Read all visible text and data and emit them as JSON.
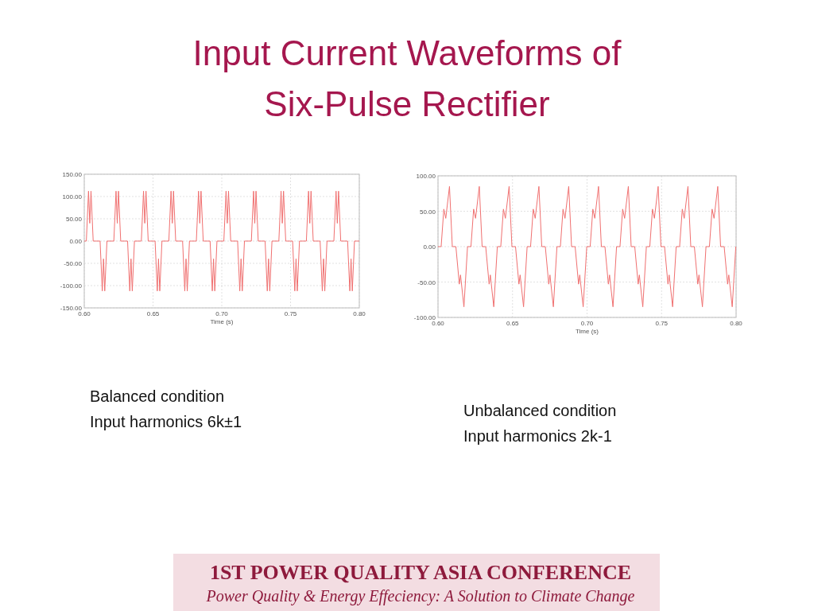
{
  "chart_data": [
    {
      "type": "line",
      "title": "Input Current Waveforms of Six-Pulse Rectifier",
      "xlabel": "Time (s)",
      "annotations": [
        "Balanced condition",
        "Input harmonics 6k±1"
      ],
      "xlim": [
        0.6,
        0.8
      ],
      "ylim": [
        -150,
        150
      ],
      "xticks": [
        {
          "value": 0.6,
          "label": "0.60"
        },
        {
          "value": 0.65,
          "label": "0.65"
        },
        {
          "value": 0.7,
          "label": "0.70"
        },
        {
          "value": 0.75,
          "label": "0.75"
        },
        {
          "value": 0.8,
          "label": "0.80"
        }
      ],
      "yticks": [
        {
          "value": -150,
          "label": "-150.00"
        },
        {
          "value": -100,
          "label": "-100.00"
        },
        {
          "value": -50,
          "label": "-50.00"
        },
        {
          "value": 0,
          "label": "0.00"
        },
        {
          "value": 50,
          "label": "50.00"
        },
        {
          "value": 100,
          "label": "100.00"
        },
        {
          "value": 150,
          "label": "150.00"
        }
      ],
      "grid": true,
      "line_style": "solid",
      "series": [
        {
          "color": "#f07070",
          "x": [
            0.6,
            0.6015,
            0.6031,
            0.604,
            0.6049,
            0.6065,
            0.6115,
            0.6131,
            0.614,
            0.6149,
            0.6165,
            0.6215,
            0.6231,
            0.624,
            0.6249,
            0.6265,
            0.6315,
            0.6331,
            0.634,
            0.6349,
            0.6365,
            0.6415,
            0.6431,
            0.644,
            0.6449,
            0.6465,
            0.6515,
            0.6531,
            0.654,
            0.6549,
            0.6565,
            0.6615,
            0.6631,
            0.664,
            0.6649,
            0.6665,
            0.6715,
            0.6731,
            0.674,
            0.6749,
            0.6765,
            0.6815,
            0.6831,
            0.684,
            0.6849,
            0.6865,
            0.6915,
            0.6931,
            0.694,
            0.6949,
            0.6965,
            0.7015,
            0.7031,
            0.704,
            0.7049,
            0.7065,
            0.7115,
            0.7131,
            0.714,
            0.7149,
            0.7165,
            0.7215,
            0.7231,
            0.724,
            0.7249,
            0.7265,
            0.7315,
            0.7331,
            0.734,
            0.7349,
            0.7365,
            0.7415,
            0.7431,
            0.744,
            0.7449,
            0.7465,
            0.7515,
            0.7531,
            0.754,
            0.7549,
            0.7565,
            0.7615,
            0.7631,
            0.764,
            0.7649,
            0.7665,
            0.7715,
            0.7731,
            0.774,
            0.7749,
            0.7765,
            0.7815,
            0.7831,
            0.784,
            0.7849,
            0.7865,
            0.7915,
            0.7931,
            0.794,
            0.7949,
            0.7965,
            0.8
          ],
          "values": [
            0,
            0,
            112,
            40,
            112,
            0,
            0,
            -112,
            -40,
            -112,
            0,
            0,
            112,
            40,
            112,
            0,
            0,
            -112,
            -40,
            -112,
            0,
            0,
            112,
            40,
            112,
            0,
            0,
            -112,
            -40,
            -112,
            0,
            0,
            112,
            40,
            112,
            0,
            0,
            -112,
            -40,
            -112,
            0,
            0,
            112,
            40,
            112,
            0,
            0,
            -112,
            -40,
            -112,
            0,
            0,
            112,
            40,
            112,
            0,
            0,
            -112,
            -40,
            -112,
            0,
            0,
            112,
            40,
            112,
            0,
            0,
            -112,
            -40,
            -112,
            0,
            0,
            112,
            40,
            112,
            0,
            0,
            -112,
            -40,
            -112,
            0,
            0,
            112,
            40,
            112,
            0,
            0,
            -112,
            -40,
            -112,
            0,
            0,
            112,
            40,
            112,
            0,
            0,
            -112,
            -40,
            -112,
            0,
            0
          ]
        }
      ]
    },
    {
      "type": "line",
      "xlabel": "Time (s)",
      "annotations": [
        "Unbalanced condition",
        "Input harmonics 2k-1",
        "1ST POWER QUALITY ASIA CONFERENCE",
        "Power Quality & Energy Effeciency: A Solution to Climate Change"
      ],
      "xlim": [
        0.6,
        0.8
      ],
      "ylim": [
        -100,
        100
      ],
      "xticks": [
        {
          "value": 0.6,
          "label": "0.60"
        },
        {
          "value": 0.65,
          "label": "0.65"
        },
        {
          "value": 0.7,
          "label": "0.70"
        },
        {
          "value": 0.75,
          "label": "0.75"
        },
        {
          "value": 0.8,
          "label": "0.80"
        }
      ],
      "yticks": [
        {
          "value": -100,
          "label": "-100.00"
        },
        {
          "value": -50,
          "label": "-50.00"
        },
        {
          "value": 0,
          "label": "0.00"
        },
        {
          "value": 50,
          "label": "50.00"
        },
        {
          "value": 100,
          "label": "100.00"
        }
      ],
      "grid": true,
      "line_style": "solid",
      "series": [
        {
          "color": "#f07070",
          "x": [
            0.6,
            0.6021,
            0.6039,
            0.6052,
            0.6077,
            0.6096,
            0.612,
            0.6143,
            0.6151,
            0.6174,
            0.6198,
            0.6221,
            0.6239,
            0.6252,
            0.6277,
            0.6296,
            0.632,
            0.6343,
            0.6351,
            0.6374,
            0.6398,
            0.6421,
            0.6439,
            0.6452,
            0.6477,
            0.6496,
            0.652,
            0.6543,
            0.6551,
            0.6574,
            0.6598,
            0.6621,
            0.6639,
            0.6652,
            0.6677,
            0.6696,
            0.672,
            0.6743,
            0.6751,
            0.6774,
            0.6798,
            0.6821,
            0.6839,
            0.6852,
            0.6877,
            0.6896,
            0.692,
            0.6943,
            0.6951,
            0.6974,
            0.6998,
            0.7021,
            0.7039,
            0.7052,
            0.7077,
            0.7096,
            0.712,
            0.7143,
            0.7151,
            0.7174,
            0.7198,
            0.7221,
            0.7239,
            0.7252,
            0.7277,
            0.7296,
            0.732,
            0.7343,
            0.7351,
            0.7374,
            0.7398,
            0.7421,
            0.7439,
            0.7452,
            0.7477,
            0.7496,
            0.752,
            0.7543,
            0.7551,
            0.7574,
            0.7598,
            0.7621,
            0.7639,
            0.7652,
            0.7677,
            0.7696,
            0.772,
            0.7743,
            0.7751,
            0.7774,
            0.7798,
            0.7821,
            0.7839,
            0.7852,
            0.7877,
            0.7896,
            0.792,
            0.7943,
            0.7951,
            0.7974,
            0.7998
          ],
          "values": [
            0,
            0,
            53,
            40,
            85,
            0,
            0,
            -53,
            -40,
            -85,
            0,
            0,
            53,
            40,
            85,
            0,
            0,
            -53,
            -40,
            -85,
            0,
            0,
            53,
            40,
            85,
            0,
            0,
            -53,
            -40,
            -85,
            0,
            0,
            53,
            40,
            85,
            0,
            0,
            -53,
            -40,
            -85,
            0,
            0,
            53,
            40,
            85,
            0,
            0,
            -53,
            -40,
            -85,
            0,
            0,
            53,
            40,
            85,
            0,
            0,
            -53,
            -40,
            -85,
            0,
            0,
            53,
            40,
            85,
            0,
            0,
            -53,
            -40,
            -85,
            0,
            0,
            53,
            40,
            85,
            0,
            0,
            -53,
            -40,
            -85,
            0,
            0,
            53,
            40,
            85,
            0,
            0,
            -53,
            -40,
            -85,
            0,
            0,
            53,
            40,
            85,
            0,
            0,
            -53,
            -40,
            -85,
            0
          ]
        }
      ]
    }
  ]
}
